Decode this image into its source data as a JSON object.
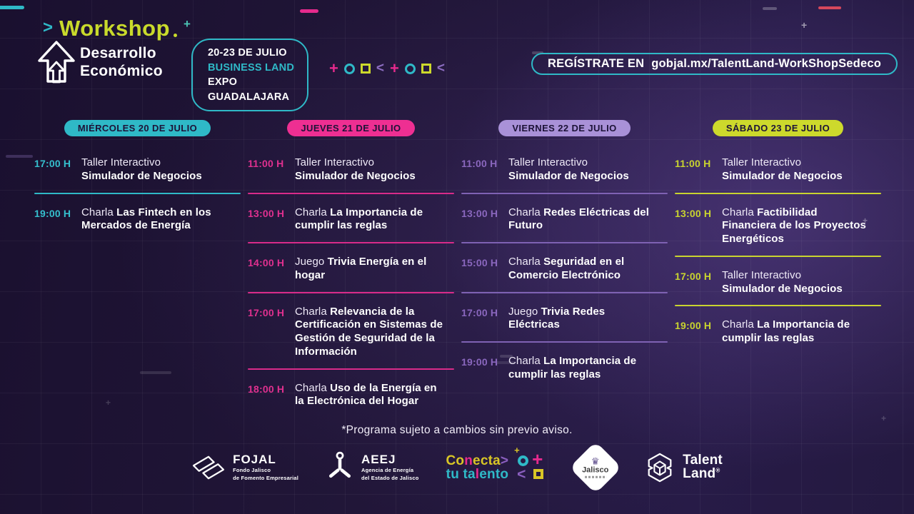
{
  "theme": {
    "teal": "#2fb9c7",
    "pink": "#ee2f92",
    "purple_light": "#a991d8",
    "purple": "#8b6cc0",
    "yellow": "#cdd92c",
    "bg_dark": "#1a102f",
    "pill_text": "#1d1338"
  },
  "decor": {
    "sparkle": "+"
  },
  "header": {
    "brand_chevron": ">",
    "brand_title": "Workshop",
    "brand_plus": "+",
    "subtitle_line1": "Desarrollo",
    "subtitle_line2": "Económico",
    "event_badge": {
      "date": "20-23 DE JULIO",
      "venue": "BUSINESS LAND",
      "location": "EXPO GUADALAJARA"
    },
    "register_label": "REGÍSTRATE EN",
    "register_url": "gobjal.mx/TalentLand-WorkShopSedeco",
    "deco_shapes": [
      {
        "type": "plus",
        "color": "#e62a8d"
      },
      {
        "type": "circle",
        "color": "#2fb9c7"
      },
      {
        "type": "square",
        "color": "#cdd92c"
      },
      {
        "type": "chevron",
        "color": "#8b6cc0"
      },
      {
        "type": "plus",
        "color": "#e62a8d"
      },
      {
        "type": "circle",
        "color": "#2fb9c7"
      },
      {
        "type": "square",
        "color": "#cdd92c"
      },
      {
        "type": "chevron",
        "color": "#8b6cc0"
      }
    ]
  },
  "schedule": {
    "columns": [
      {
        "day": "MIÉRCOLES 20 DE JULIO",
        "pill_color": "#2fb9c7",
        "time_color": "#35bfcd",
        "divider_color": "#2fb9c7",
        "events": [
          {
            "time": "17:00 H",
            "kind": "Taller Interactivo",
            "title": "Simulador de Negocios",
            "stacked": true
          },
          {
            "time": "19:00 H",
            "kind": "Charla",
            "title": "Las Fintech en los Mercados de Energía",
            "stacked": false
          }
        ]
      },
      {
        "day": "JUEVES 21 DE JULIO",
        "pill_color": "#ee2f92",
        "time_color": "#e0308f",
        "divider_color": "#d92b8a",
        "events": [
          {
            "time": "11:00 H",
            "kind": "Taller Interactivo",
            "title": "Simulador de Negocios",
            "stacked": true
          },
          {
            "time": "13:00 H",
            "kind": "Charla",
            "title": "La Importancia de cumplir las reglas",
            "stacked": false
          },
          {
            "time": "14:00 H",
            "kind": "Juego",
            "title": "Trivia Energía en el hogar",
            "stacked": false
          },
          {
            "time": "17:00 H",
            "kind": "Charla",
            "title": "Relevancia de la Certificación en Sistemas de Gestión de Seguridad de la Información",
            "stacked": false
          },
          {
            "time": "18:00 H",
            "kind": "Charla",
            "title": "Uso de la Energía en la Electrónica del Hogar",
            "stacked": false
          }
        ]
      },
      {
        "day": "VIERNES 22 DE JULIO",
        "pill_color": "#a991d8",
        "time_color": "#8a67be",
        "divider_color": "#7f62b4",
        "events": [
          {
            "time": "11:00 H",
            "kind": "Taller Interactivo",
            "title": "Simulador de Negocios",
            "stacked": true
          },
          {
            "time": "13:00 H",
            "kind": "Charla",
            "title": "Redes Eléctricas del Futuro",
            "stacked": false
          },
          {
            "time": "15:00 H",
            "kind": "Charla",
            "title": "Seguridad en el Comercio Electrónico",
            "stacked": false
          },
          {
            "time": "17:00 H",
            "kind": "Juego",
            "title": "Trivia Redes Eléctricas",
            "stacked": false
          },
          {
            "time": "19:00 H",
            "kind": "Charla",
            "title": "La Importancia de cumplir las reglas",
            "stacked": false
          }
        ]
      },
      {
        "day": "SÁBADO 23 DE JULIO",
        "pill_color": "#cdd92c",
        "time_color": "#c9d42f",
        "divider_color": "#c9d42f",
        "events": [
          {
            "time": "11:00 H",
            "kind": "Taller Interactivo",
            "title": "Simulador de Negocios",
            "stacked": true
          },
          {
            "time": "13:00 H",
            "kind": "Charla",
            "title": "Factibilidad Financiera de los Proyectos Energéticos",
            "stacked": false
          },
          {
            "time": "17:00 H",
            "kind": "Taller Interactivo",
            "title": "Simulador de Negocios",
            "stacked": true
          },
          {
            "time": "19:00 H",
            "kind": "Charla",
            "title": "La Importancia de cumplir las reglas",
            "stacked": false
          }
        ]
      }
    ]
  },
  "footnote": "*Programa sujeto a cambios sin previo aviso.",
  "footer": {
    "fojal": {
      "name": "FOJAL",
      "tagline_line1": "Fondo Jalisco",
      "tagline_line2": "de Fomento Empresarial"
    },
    "aeej": {
      "name": "AEEJ",
      "tagline_line1": "Agencia de Energía",
      "tagline_line2": "del Estado de Jalisco"
    },
    "conecta": {
      "word1_a": "Co",
      "word1_n": "n",
      "word1_b": "ecta",
      "chevron": ">",
      "word2_a": "tu ta",
      "word2_l": "l",
      "word2_b": "ento"
    },
    "jalisco": {
      "name": "Jalisco",
      "crest_icon": "♛"
    },
    "talentland": {
      "line1": "Talent",
      "line2": "Land",
      "registered": "®"
    }
  }
}
